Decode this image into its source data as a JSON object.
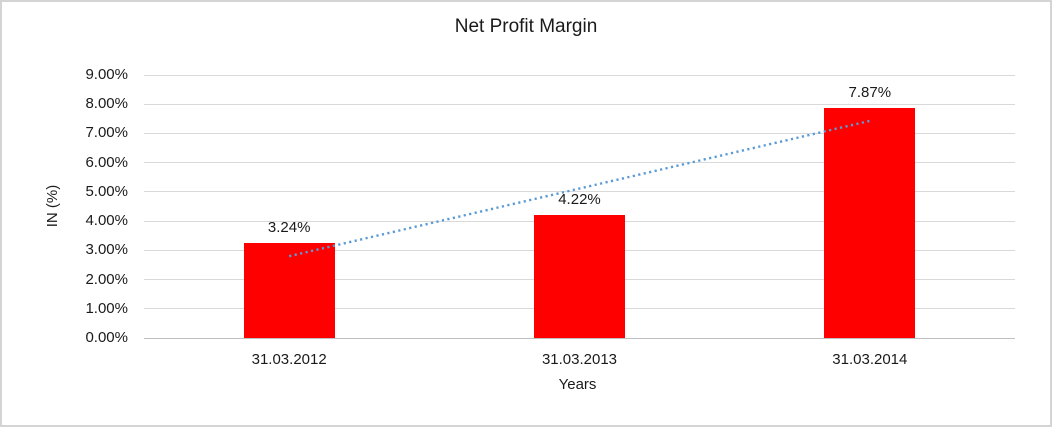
{
  "chart_data": {
    "type": "bar",
    "title": "Net Profit Margin",
    "categories": [
      "31.03.2012",
      "31.03.2013",
      "31.03.2014"
    ],
    "values": [
      3.24,
      4.22,
      7.87
    ],
    "data_labels": [
      "3.24%",
      "4.22%",
      "7.87%"
    ],
    "xlabel": "Years",
    "ylabel": "IN (%)",
    "ylim": [
      0,
      9
    ],
    "y_tick_labels": [
      "0.00%",
      "1.00%",
      "2.00%",
      "3.00%",
      "4.00%",
      "5.00%",
      "6.00%",
      "7.00%",
      "8.00%",
      "9.00%"
    ],
    "grid": true,
    "legend": "none",
    "bar_color": "#fe0000",
    "trendline": {
      "type": "linear",
      "style": "dotted",
      "color": "#5b9bd5",
      "start_value": 2.8,
      "end_value": 7.43
    }
  }
}
